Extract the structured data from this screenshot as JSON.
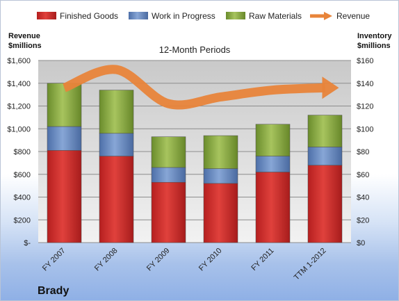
{
  "chart_data": {
    "type": "bar",
    "stacked": true,
    "subtitle": "12-Month Periods",
    "company": "Brady",
    "categories": [
      "FY 2007",
      "FY 2008",
      "FY 2009",
      "FY 2010",
      "FY 2011",
      "TTM 1-2012"
    ],
    "y_left": {
      "label_line1": "Revenue",
      "label_line2": "$millions",
      "range": [
        0,
        1600
      ],
      "ticks": [
        "$-",
        "$200",
        "$400",
        "$600",
        "$800",
        "$1,000",
        "$1,200",
        "$1,400",
        "$1,600"
      ]
    },
    "y_right": {
      "label_line1": "Inventory",
      "label_line2": "$millions",
      "range": [
        0,
        160
      ],
      "ticks": [
        "$0",
        "$20",
        "$40",
        "$60",
        "$80",
        "$100",
        "$120",
        "$140",
        "$160"
      ]
    },
    "series": [
      {
        "name": "Finished Goods",
        "axis": "right",
        "color": "#d0312d",
        "values": [
          81,
          76,
          53,
          52,
          62,
          68
        ]
      },
      {
        "name": "Work in Progress",
        "axis": "right",
        "color": "#6d8fc4",
        "values": [
          21,
          20,
          13,
          13,
          14,
          16
        ]
      },
      {
        "name": "Raw Materials",
        "axis": "right",
        "color": "#8fb04a",
        "values": [
          38,
          38,
          27,
          29,
          28,
          28
        ]
      },
      {
        "name": "Revenue",
        "axis": "left",
        "type": "line",
        "color": "#e8843a",
        "values": [
          1360,
          1520,
          1220,
          1280,
          1340,
          1360
        ]
      }
    ],
    "legend_position": "top",
    "grid": true
  }
}
